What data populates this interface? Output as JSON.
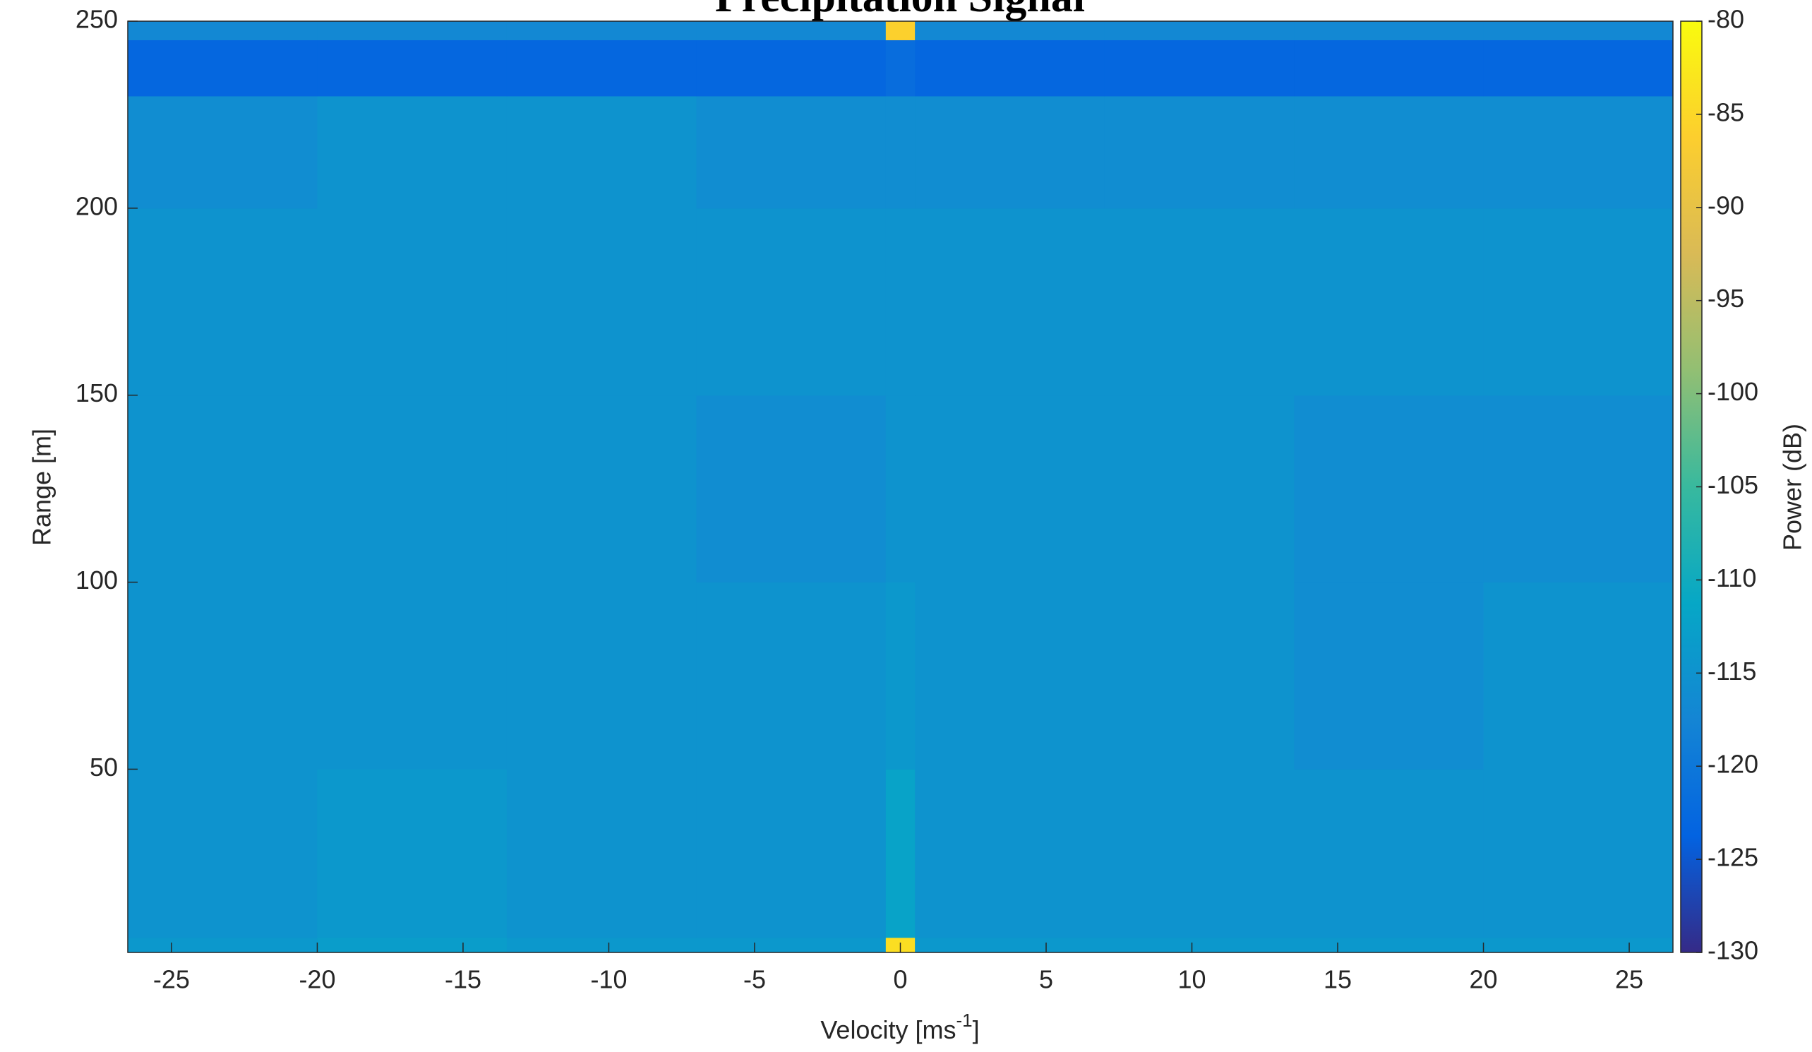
{
  "chart_data": {
    "type": "heatmap",
    "title": "Precipitation Signal",
    "xlabel": [
      "Velocity [ms",
      "-1",
      "]"
    ],
    "ylabel": "Range [m]",
    "colorbar_label": "Power (dB)",
    "xlim": [
      -26.5,
      26.5
    ],
    "ylim": [
      1,
      250
    ],
    "xticks": [
      -25,
      -20,
      -15,
      -10,
      -5,
      0,
      5,
      10,
      15,
      20,
      25
    ],
    "yticks": [
      50,
      100,
      150,
      200,
      250
    ],
    "xbins": [
      -26.5,
      -20,
      -13.5,
      -7,
      -0.5,
      0.5,
      7,
      13.5,
      20,
      26.5
    ],
    "ybins": [
      1,
      5,
      50,
      100,
      150,
      200,
      230,
      245,
      250
    ],
    "z": [
      [
        -114,
        -113,
        -114,
        -114,
        -84,
        -114,
        -114,
        -114,
        -114
      ],
      [
        -115,
        -114,
        -115,
        -115,
        -112,
        -115,
        -115,
        -115,
        -115
      ],
      [
        -115,
        -115,
        -115,
        -115,
        -114,
        -115,
        -115,
        -116,
        -115
      ],
      [
        -115,
        -115,
        -115,
        -116,
        -115,
        -115,
        -115,
        -116,
        -116
      ],
      [
        -115,
        -115,
        -115,
        -115,
        -115,
        -115,
        -115,
        -115,
        -115
      ],
      [
        -116,
        -115,
        -115,
        -116,
        -116,
        -116,
        -116,
        -116,
        -116
      ],
      [
        -123,
        -123,
        -123,
        -123,
        -122,
        -123,
        -123,
        -123,
        -123
      ],
      [
        -117,
        -117,
        -117,
        -117,
        -86,
        -117,
        -117,
        -117,
        -117
      ]
    ],
    "clim": [
      -130,
      -80
    ],
    "cticks": [
      -80,
      -85,
      -90,
      -95,
      -100,
      -105,
      -110,
      -115,
      -120,
      -125,
      -130
    ],
    "colormap": [
      "#352a87",
      "#0363e1",
      "#1485d4",
      "#06a7c6",
      "#38b99e",
      "#92bf73",
      "#d9ba56",
      "#fcce2e",
      "#f9fb0e"
    ]
  }
}
